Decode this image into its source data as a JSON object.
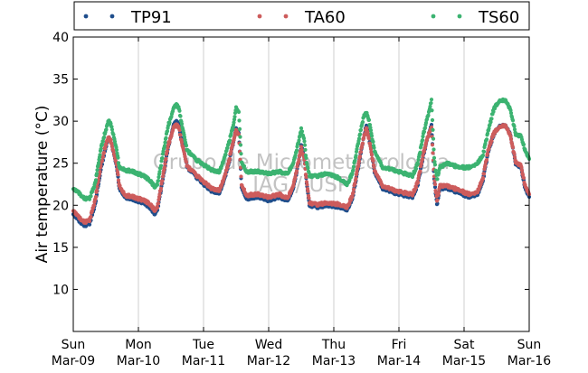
{
  "chart_data": {
    "type": "scatter",
    "title": "",
    "xlabel": "",
    "ylabel": "Air temperature (°C)",
    "ylim": [
      5,
      40
    ],
    "xlim": [
      "2014-03-09 00:00",
      "2014-03-16 00:00"
    ],
    "y_ticks": [
      "10",
      "15",
      "20",
      "25",
      "30",
      "35",
      "40"
    ],
    "x_ticks": [
      {
        "day": "Sun",
        "date": "Mar-09"
      },
      {
        "day": "Mon",
        "date": "Mar-10"
      },
      {
        "day": "Tue",
        "date": "Mar-11"
      },
      {
        "day": "Wed",
        "date": "Mar-12"
      },
      {
        "day": "Thu",
        "date": "Mar-13"
      },
      {
        "day": "Fri",
        "date": "Mar-14"
      },
      {
        "day": "Sat",
        "date": "Mar-15"
      },
      {
        "day": "Sun",
        "date": "Mar-16"
      }
    ],
    "grid": "vertical",
    "legend_position": "top",
    "watermark": [
      "Grupo de Micrometeorologia",
      "IAG / USP"
    ],
    "series": [
      {
        "name": "TP91",
        "color": "#1f4e8c",
        "points": [
          [
            "2014-03-09 00:00",
            19.0
          ],
          [
            "2014-03-09 02:00",
            18.2
          ],
          [
            "2014-03-09 04:00",
            17.6
          ],
          [
            "2014-03-09 06:00",
            17.8
          ],
          [
            "2014-03-09 08:00",
            20.0
          ],
          [
            "2014-03-09 10:00",
            24.0
          ],
          [
            "2014-03-09 12:00",
            27.0
          ],
          [
            "2014-03-09 13:00",
            28.0
          ],
          [
            "2014-03-09 14:00",
            27.5
          ],
          [
            "2014-03-09 16:00",
            24.5
          ],
          [
            "2014-03-09 17:00",
            22.0
          ],
          [
            "2014-03-09 19:00",
            21.0
          ],
          [
            "2014-03-09 22:00",
            20.7
          ],
          [
            "2014-03-10 02:00",
            20.3
          ],
          [
            "2014-03-10 04:00",
            19.8
          ],
          [
            "2014-03-10 06:00",
            19.0
          ],
          [
            "2014-03-10 07:00",
            19.5
          ],
          [
            "2014-03-10 09:00",
            23.0
          ],
          [
            "2014-03-10 11:00",
            27.0
          ],
          [
            "2014-03-10 13:00",
            29.5
          ],
          [
            "2014-03-10 14:00",
            30.0
          ],
          [
            "2014-03-10 15:00",
            29.5
          ],
          [
            "2014-03-10 16:00",
            27.5
          ],
          [
            "2014-03-10 18:00",
            24.5
          ],
          [
            "2014-03-10 21:00",
            23.5
          ],
          [
            "2014-03-11 00:00",
            22.5
          ],
          [
            "2014-03-11 03:00",
            21.7
          ],
          [
            "2014-03-11 06:00",
            21.5
          ],
          [
            "2014-03-11 09:00",
            24.5
          ],
          [
            "2014-03-11 11:00",
            27.5
          ],
          [
            "2014-03-11 12:00",
            29.0
          ],
          [
            "2014-03-11 13:00",
            28.5
          ],
          [
            "2014-03-11 14:00",
            22.0
          ],
          [
            "2014-03-11 16:00",
            20.8
          ],
          [
            "2014-03-11 20:00",
            21.0
          ],
          [
            "2014-03-12 00:00",
            20.6
          ],
          [
            "2014-03-12 04:00",
            21.0
          ],
          [
            "2014-03-12 07:00",
            20.5
          ],
          [
            "2014-03-12 09:00",
            22.0
          ],
          [
            "2014-03-12 11:00",
            25.0
          ],
          [
            "2014-03-12 12:00",
            27.0
          ],
          [
            "2014-03-12 13:00",
            26.0
          ],
          [
            "2014-03-12 14:00",
            22.5
          ],
          [
            "2014-03-12 15:00",
            20.0
          ],
          [
            "2014-03-12 18:00",
            19.8
          ],
          [
            "2014-03-12 22:00",
            20.0
          ],
          [
            "2014-03-13 02:00",
            19.8
          ],
          [
            "2014-03-13 05:00",
            19.5
          ],
          [
            "2014-03-13 07:00",
            21.0
          ],
          [
            "2014-03-13 09:00",
            24.5
          ],
          [
            "2014-03-13 11:00",
            28.0
          ],
          [
            "2014-03-13 12:00",
            29.5
          ],
          [
            "2014-03-13 13:00",
            28.0
          ],
          [
            "2014-03-13 15:00",
            24.0
          ],
          [
            "2014-03-13 18:00",
            22.0
          ],
          [
            "2014-03-13 22:00",
            21.5
          ],
          [
            "2014-03-14 02:00",
            21.2
          ],
          [
            "2014-03-14 05:00",
            21.0
          ],
          [
            "2014-03-14 07:00",
            22.5
          ],
          [
            "2014-03-14 09:00",
            26.0
          ],
          [
            "2014-03-14 11:00",
            28.5
          ],
          [
            "2014-03-14 12:00",
            29.5
          ],
          [
            "2014-03-14 13:00",
            23.0
          ],
          [
            "2014-03-14 14:00",
            20.0
          ],
          [
            "2014-03-14 15:00",
            22.0
          ],
          [
            "2014-03-14 18:00",
            22.0
          ],
          [
            "2014-03-14 22:00",
            21.5
          ],
          [
            "2014-03-15 02:00",
            21.0
          ],
          [
            "2014-03-15 05:00",
            21.3
          ],
          [
            "2014-03-15 07:00",
            23.0
          ],
          [
            "2014-03-15 09:00",
            26.5
          ],
          [
            "2014-03-15 11:00",
            28.5
          ],
          [
            "2014-03-15 13:00",
            29.5
          ],
          [
            "2014-03-15 15:00",
            29.5
          ],
          [
            "2014-03-15 17:00",
            28.5
          ],
          [
            "2014-03-15 19:00",
            25.0
          ],
          [
            "2014-03-15 21:00",
            24.5
          ],
          [
            "2014-03-15 22:30",
            22.0
          ],
          [
            "2014-03-16 00:00",
            21.0
          ]
        ]
      },
      {
        "name": "TA60",
        "color": "#cd5c5c",
        "points": [
          [
            "2014-03-09 00:00",
            19.4
          ],
          [
            "2014-03-09 02:00",
            18.6
          ],
          [
            "2014-03-09 04:00",
            18.0
          ],
          [
            "2014-03-09 06:00",
            18.2
          ],
          [
            "2014-03-09 08:00",
            20.5
          ],
          [
            "2014-03-09 10:00",
            24.5
          ],
          [
            "2014-03-09 12:00",
            27.3
          ],
          [
            "2014-03-09 13:00",
            28.0
          ],
          [
            "2014-03-09 14:00",
            27.5
          ],
          [
            "2014-03-09 16:00",
            24.7
          ],
          [
            "2014-03-09 17:00",
            22.3
          ],
          [
            "2014-03-09 19:00",
            21.2
          ],
          [
            "2014-03-09 22:00",
            21.0
          ],
          [
            "2014-03-10 02:00",
            20.6
          ],
          [
            "2014-03-10 04:00",
            20.2
          ],
          [
            "2014-03-10 06:00",
            19.4
          ],
          [
            "2014-03-10 07:00",
            19.8
          ],
          [
            "2014-03-10 09:00",
            23.3
          ],
          [
            "2014-03-10 11:00",
            27.2
          ],
          [
            "2014-03-10 13:00",
            29.2
          ],
          [
            "2014-03-10 14:00",
            29.6
          ],
          [
            "2014-03-10 15:00",
            29.2
          ],
          [
            "2014-03-10 16:00",
            27.3
          ],
          [
            "2014-03-10 18:00",
            24.6
          ],
          [
            "2014-03-10 21:00",
            23.7
          ],
          [
            "2014-03-11 00:00",
            22.8
          ],
          [
            "2014-03-11 03:00",
            22.0
          ],
          [
            "2014-03-11 06:00",
            21.8
          ],
          [
            "2014-03-11 09:00",
            24.7
          ],
          [
            "2014-03-11 11:00",
            27.6
          ],
          [
            "2014-03-11 12:00",
            28.8
          ],
          [
            "2014-03-11 13:00",
            28.3
          ],
          [
            "2014-03-11 14:00",
            22.3
          ],
          [
            "2014-03-11 16:00",
            21.2
          ],
          [
            "2014-03-11 20:00",
            21.3
          ],
          [
            "2014-03-12 00:00",
            21.0
          ],
          [
            "2014-03-12 04:00",
            21.3
          ],
          [
            "2014-03-12 07:00",
            20.8
          ],
          [
            "2014-03-12 09:00",
            22.3
          ],
          [
            "2014-03-12 11:00",
            25.2
          ],
          [
            "2014-03-12 12:00",
            26.8
          ],
          [
            "2014-03-12 13:00",
            25.8
          ],
          [
            "2014-03-12 14:00",
            22.7
          ],
          [
            "2014-03-12 15:00",
            20.3
          ],
          [
            "2014-03-12 18:00",
            20.1
          ],
          [
            "2014-03-12 22:00",
            20.3
          ],
          [
            "2014-03-13 02:00",
            20.1
          ],
          [
            "2014-03-13 05:00",
            19.8
          ],
          [
            "2014-03-13 07:00",
            21.3
          ],
          [
            "2014-03-13 09:00",
            24.8
          ],
          [
            "2014-03-13 11:00",
            28.0
          ],
          [
            "2014-03-13 12:00",
            29.2
          ],
          [
            "2014-03-13 13:00",
            27.8
          ],
          [
            "2014-03-13 15:00",
            24.2
          ],
          [
            "2014-03-13 18:00",
            22.3
          ],
          [
            "2014-03-13 22:00",
            21.8
          ],
          [
            "2014-03-14 02:00",
            21.5
          ],
          [
            "2014-03-14 05:00",
            21.3
          ],
          [
            "2014-03-14 07:00",
            22.8
          ],
          [
            "2014-03-14 09:00",
            26.2
          ],
          [
            "2014-03-14 11:00",
            28.5
          ],
          [
            "2014-03-14 12:00",
            29.2
          ],
          [
            "2014-03-14 13:00",
            23.3
          ],
          [
            "2014-03-14 14:00",
            20.4
          ],
          [
            "2014-03-14 15:00",
            22.3
          ],
          [
            "2014-03-14 18:00",
            22.3
          ],
          [
            "2014-03-14 22:00",
            21.8
          ],
          [
            "2014-03-15 02:00",
            21.3
          ],
          [
            "2014-03-15 05:00",
            21.6
          ],
          [
            "2014-03-15 07:00",
            23.3
          ],
          [
            "2014-03-15 09:00",
            26.7
          ],
          [
            "2014-03-15 11:00",
            28.6
          ],
          [
            "2014-03-15 13:00",
            29.4
          ],
          [
            "2014-03-15 15:00",
            29.5
          ],
          [
            "2014-03-15 17:00",
            28.4
          ],
          [
            "2014-03-15 19:00",
            25.2
          ],
          [
            "2014-03-15 21:00",
            24.7
          ],
          [
            "2014-03-15 22:30",
            22.3
          ],
          [
            "2014-03-16 00:00",
            21.3
          ]
        ]
      },
      {
        "name": "TS60",
        "color": "#3cb371",
        "points": [
          [
            "2014-03-09 00:00",
            22.0
          ],
          [
            "2014-03-09 02:00",
            21.5
          ],
          [
            "2014-03-09 04:00",
            20.8
          ],
          [
            "2014-03-09 06:00",
            20.8
          ],
          [
            "2014-03-09 08:00",
            22.5
          ],
          [
            "2014-03-09 10:00",
            26.5
          ],
          [
            "2014-03-09 12:00",
            29.0
          ],
          [
            "2014-03-09 13:00",
            30.0
          ],
          [
            "2014-03-09 14:00",
            29.5
          ],
          [
            "2014-03-09 16:00",
            26.5
          ],
          [
            "2014-03-09 17:00",
            24.5
          ],
          [
            "2014-03-09 19:00",
            24.2
          ],
          [
            "2014-03-09 22:00",
            24.0
          ],
          [
            "2014-03-10 02:00",
            23.5
          ],
          [
            "2014-03-10 04:00",
            23.0
          ],
          [
            "2014-03-10 06:00",
            22.2
          ],
          [
            "2014-03-10 07:00",
            22.5
          ],
          [
            "2014-03-10 09:00",
            26.0
          ],
          [
            "2014-03-10 11:00",
            29.5
          ],
          [
            "2014-03-10 13:00",
            31.5
          ],
          [
            "2014-03-10 14:00",
            32.0
          ],
          [
            "2014-03-10 15:00",
            31.5
          ],
          [
            "2014-03-10 16:00",
            29.5
          ],
          [
            "2014-03-10 18:00",
            26.5
          ],
          [
            "2014-03-10 21:00",
            25.5
          ],
          [
            "2014-03-11 00:00",
            24.8
          ],
          [
            "2014-03-11 03:00",
            24.2
          ],
          [
            "2014-03-11 06:00",
            24.0
          ],
          [
            "2014-03-11 09:00",
            27.0
          ],
          [
            "2014-03-11 11:00",
            29.5
          ],
          [
            "2014-03-11 12:00",
            31.5
          ],
          [
            "2014-03-11 13:00",
            31.0
          ],
          [
            "2014-03-11 14:00",
            25.0
          ],
          [
            "2014-03-11 16:00",
            24.0
          ],
          [
            "2014-03-11 20:00",
            24.0
          ],
          [
            "2014-03-12 00:00",
            23.8
          ],
          [
            "2014-03-12 04:00",
            24.0
          ],
          [
            "2014-03-12 07:00",
            23.7
          ],
          [
            "2014-03-12 09:00",
            25.0
          ],
          [
            "2014-03-12 11:00",
            27.5
          ],
          [
            "2014-03-12 12:00",
            29.0
          ],
          [
            "2014-03-12 13:00",
            28.0
          ],
          [
            "2014-03-12 14:00",
            25.0
          ],
          [
            "2014-03-12 15:00",
            23.5
          ],
          [
            "2014-03-12 18:00",
            23.5
          ],
          [
            "2014-03-12 22:00",
            23.8
          ],
          [
            "2014-03-13 02:00",
            23.2
          ],
          [
            "2014-03-13 05:00",
            22.5
          ],
          [
            "2014-03-13 07:00",
            24.0
          ],
          [
            "2014-03-13 09:00",
            27.5
          ],
          [
            "2014-03-13 11:00",
            30.5
          ],
          [
            "2014-03-13 12:00",
            31.0
          ],
          [
            "2014-03-13 13:00",
            30.0
          ],
          [
            "2014-03-13 15:00",
            26.5
          ],
          [
            "2014-03-13 18:00",
            24.5
          ],
          [
            "2014-03-13 22:00",
            24.2
          ],
          [
            "2014-03-14 02:00",
            23.8
          ],
          [
            "2014-03-14 05:00",
            23.5
          ],
          [
            "2014-03-14 07:00",
            25.0
          ],
          [
            "2014-03-14 09:00",
            28.5
          ],
          [
            "2014-03-14 11:00",
            31.0
          ],
          [
            "2014-03-14 12:00",
            32.5
          ],
          [
            "2014-03-14 13:00",
            25.5
          ],
          [
            "2014-03-14 14:00",
            23.0
          ],
          [
            "2014-03-14 15:00",
            24.5
          ],
          [
            "2014-03-14 18:00",
            25.0
          ],
          [
            "2014-03-14 22:00",
            24.5
          ],
          [
            "2014-03-15 02:00",
            24.5
          ],
          [
            "2014-03-15 05:00",
            25.0
          ],
          [
            "2014-03-15 07:00",
            26.0
          ],
          [
            "2014-03-15 09:00",
            29.0
          ],
          [
            "2014-03-15 11:00",
            31.5
          ],
          [
            "2014-03-15 13:00",
            32.5
          ],
          [
            "2014-03-15 15:00",
            32.5
          ],
          [
            "2014-03-15 17:00",
            31.5
          ],
          [
            "2014-03-15 19:00",
            28.5
          ],
          [
            "2014-03-15 21:00",
            28.2
          ],
          [
            "2014-03-15 22:30",
            26.5
          ],
          [
            "2014-03-16 00:00",
            25.5
          ]
        ]
      }
    ]
  }
}
